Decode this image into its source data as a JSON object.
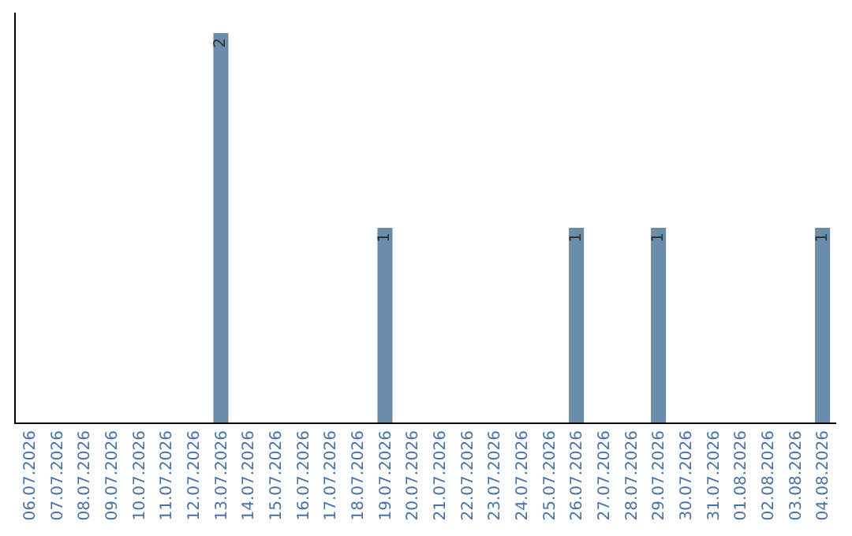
{
  "chart_data": {
    "type": "bar",
    "categories": [
      "06.07.2026",
      "07.07.2026",
      "08.07.2026",
      "09.07.2026",
      "10.07.2026",
      "11.07.2026",
      "12.07.2026",
      "13.07.2026",
      "14.07.2026",
      "15.07.2026",
      "16.07.2026",
      "17.07.2026",
      "18.07.2026",
      "19.07.2026",
      "20.07.2026",
      "21.07.2026",
      "22.07.2026",
      "23.07.2026",
      "24.07.2026",
      "25.07.2026",
      "26.07.2026",
      "27.07.2026",
      "28.07.2026",
      "29.07.2026",
      "30.07.2026",
      "31.07.2026",
      "01.08.2026",
      "02.08.2026",
      "03.08.2026",
      "04.08.2026"
    ],
    "values": [
      0,
      0,
      0,
      0,
      0,
      0,
      0,
      2,
      0,
      0,
      0,
      0,
      0,
      1,
      0,
      0,
      0,
      0,
      0,
      0,
      1,
      0,
      0,
      1,
      0,
      0,
      0,
      0,
      0,
      1
    ],
    "value_labels": [
      null,
      null,
      null,
      null,
      null,
      null,
      null,
      "2",
      null,
      null,
      null,
      null,
      null,
      "1",
      null,
      null,
      null,
      null,
      null,
      null,
      "1",
      null,
      null,
      "1",
      null,
      null,
      null,
      null,
      null,
      "1"
    ],
    "color": "#6b8cab",
    "tick_labels": "x",
    "grid": false,
    "legend": false
  }
}
